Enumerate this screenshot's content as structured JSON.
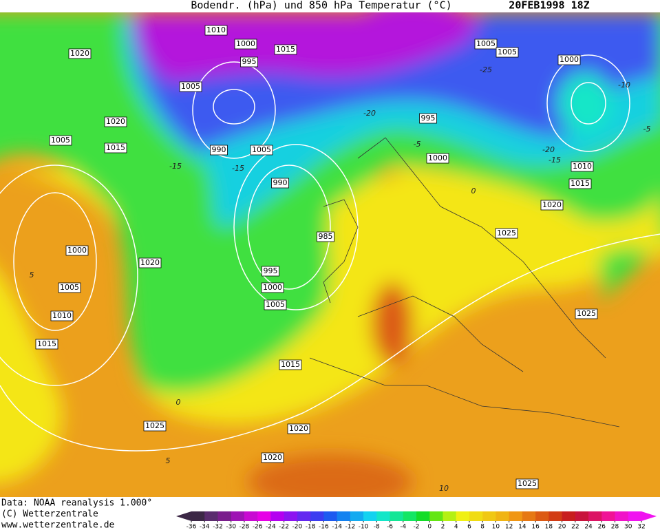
{
  "header": {
    "title": "Bodendr. (hPa) und 850 hPa Temperatur (°C)",
    "date": "20FEB1998 18Z"
  },
  "isobar_labels": [
    1010,
    1000,
    1015,
    995,
    1005,
    1020,
    1020,
    1005,
    1015,
    990,
    1005,
    990,
    995,
    1000,
    1005,
    1005,
    1000,
    1010,
    1015,
    1020,
    1025,
    985,
    1000,
    1020,
    995,
    1000,
    1005,
    1005,
    1010,
    1025,
    1015,
    1015,
    1025,
    1020,
    1020,
    1025
  ],
  "temperature_labels": [
    -25,
    -20,
    -15,
    -10,
    -5,
    -20,
    -15,
    -15,
    -5,
    0,
    5,
    0,
    5,
    10
  ],
  "footer": [
    "Data: NOAA reanalysis 1.000°",
    "(C) Wetterzentrale",
    "www.wetterzentrale.de"
  ],
  "colorbar": {
    "ticks": [
      -36,
      -34,
      -32,
      -30,
      -28,
      -26,
      -24,
      -22,
      -20,
      -18,
      -16,
      -14,
      -12,
      -10,
      -8,
      -6,
      -4,
      -2,
      0,
      2,
      4,
      6,
      8,
      10,
      12,
      14,
      16,
      18,
      20,
      22,
      24,
      26,
      28,
      30,
      32
    ],
    "colors": [
      "#3c2846",
      "#5a2c6e",
      "#7a1e8c",
      "#9e14b4",
      "#c80ad2",
      "#e600e6",
      "#b400f0",
      "#8c14f0",
      "#6428f0",
      "#3c3cf0",
      "#1e5af0",
      "#1482f0",
      "#14aaf0",
      "#14d2f0",
      "#14e6c8",
      "#14e696",
      "#14e664",
      "#14dc28",
      "#64e614",
      "#b4f014",
      "#f0f014",
      "#f0dc14",
      "#f0c814",
      "#f0b414",
      "#f09614",
      "#e67814",
      "#dc5a14",
      "#d23c14",
      "#c81e1e",
      "#c8143c",
      "#dc1464",
      "#f01496",
      "#f014c8",
      "#f014f0"
    ]
  }
}
